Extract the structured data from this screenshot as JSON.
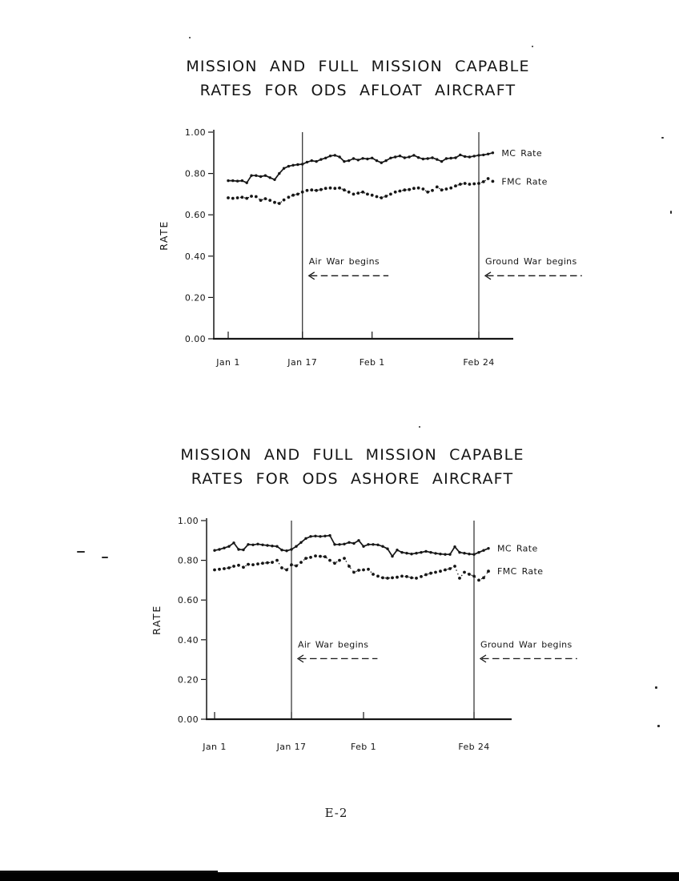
{
  "page": {
    "footer": "E-2",
    "background": "#ffffff",
    "ink_color": "#161616"
  },
  "chart_data": [
    {
      "type": "line",
      "title": "MISSION AND FULL MISSION CAPABLE RATES FOR ODS AFLOAT AIRCRAFT",
      "title_lines": [
        "MISSION AND FULL MISSION CAPABLE",
        "RATES FOR ODS AFLOAT AIRCRAFT"
      ],
      "ylabel": "RATE",
      "xlabel": "",
      "ylim": [
        0.0,
        1.0
      ],
      "grid": "off",
      "legend_position": "right-of-line-ends",
      "yticks": [
        0.0,
        0.2,
        0.4,
        0.6,
        0.8,
        1.0
      ],
      "ytick_labels": [
        "0.00",
        "0.20",
        "0.40",
        "0.60",
        "0.80",
        "1.00"
      ],
      "xtick_labels": [
        "Jan 1",
        "Jan 17",
        "Feb 1",
        "Feb 24"
      ],
      "xtick_days": [
        0,
        16,
        31,
        54
      ],
      "x_days_range": [
        0,
        57
      ],
      "annotations": [
        {
          "label": "Air War begins",
          "at_day": 16,
          "arrow": "left-dashed"
        },
        {
          "label": "Ground War begins",
          "at_day": 54,
          "arrow": "left-dashed"
        }
      ],
      "series": [
        {
          "name": "MC Rate",
          "style": "solid-with-markers",
          "values": [
            0.765,
            0.765,
            0.763,
            0.765,
            0.755,
            0.79,
            0.79,
            0.785,
            0.79,
            0.78,
            0.77,
            0.8,
            0.825,
            0.835,
            0.84,
            0.843,
            0.845,
            0.855,
            0.862,
            0.858,
            0.868,
            0.875,
            0.885,
            0.888,
            0.88,
            0.858,
            0.862,
            0.872,
            0.865,
            0.873,
            0.87,
            0.875,
            0.862,
            0.852,
            0.862,
            0.875,
            0.88,
            0.885,
            0.876,
            0.88,
            0.888,
            0.877,
            0.87,
            0.872,
            0.876,
            0.868,
            0.858,
            0.872,
            0.874,
            0.876,
            0.89,
            0.882,
            0.88,
            0.884,
            0.888,
            0.89,
            0.894,
            0.9
          ]
        },
        {
          "name": "FMC Rate",
          "style": "dotted-with-markers",
          "values": [
            0.682,
            0.68,
            0.682,
            0.685,
            0.68,
            0.69,
            0.688,
            0.67,
            0.678,
            0.67,
            0.66,
            0.655,
            0.672,
            0.685,
            0.695,
            0.7,
            0.71,
            0.718,
            0.72,
            0.718,
            0.722,
            0.728,
            0.73,
            0.728,
            0.73,
            0.72,
            0.71,
            0.7,
            0.705,
            0.71,
            0.7,
            0.695,
            0.688,
            0.682,
            0.69,
            0.7,
            0.71,
            0.715,
            0.72,
            0.722,
            0.728,
            0.73,
            0.725,
            0.71,
            0.718,
            0.735,
            0.72,
            0.725,
            0.73,
            0.74,
            0.748,
            0.752,
            0.748,
            0.75,
            0.752,
            0.76,
            0.775,
            0.762
          ]
        }
      ]
    },
    {
      "type": "line",
      "title": "MISSION AND FULL MISSION CAPABLE RATES FOR ODS ASHORE AIRCRAFT",
      "title_lines": [
        "MISSION AND FULL MISSION CAPABLE",
        "RATES FOR ODS ASHORE AIRCRAFT"
      ],
      "ylabel": "RATE",
      "xlabel": "",
      "ylim": [
        0.0,
        1.0
      ],
      "grid": "off",
      "legend_position": "right-of-line-ends",
      "yticks": [
        0.0,
        0.2,
        0.4,
        0.6,
        0.8,
        1.0
      ],
      "ytick_labels": [
        "0.00",
        "0.20",
        "0.40",
        "0.60",
        "0.80",
        "1.00"
      ],
      "xtick_labels": [
        "Jan 1",
        "Jan 17",
        "Feb 1",
        "Feb 24"
      ],
      "xtick_days": [
        0,
        16,
        31,
        54
      ],
      "x_days_range": [
        0,
        57
      ],
      "annotations": [
        {
          "label": "Air War begins",
          "at_day": 16,
          "arrow": "left-dashed"
        },
        {
          "label": "Ground War begins",
          "at_day": 54,
          "arrow": "left-dashed"
        }
      ],
      "series": [
        {
          "name": "MC Rate",
          "style": "solid-with-markers",
          "values": [
            0.85,
            0.855,
            0.862,
            0.87,
            0.888,
            0.855,
            0.853,
            0.88,
            0.878,
            0.882,
            0.878,
            0.875,
            0.872,
            0.87,
            0.852,
            0.848,
            0.855,
            0.87,
            0.89,
            0.91,
            0.92,
            0.922,
            0.92,
            0.922,
            0.925,
            0.88,
            0.88,
            0.882,
            0.89,
            0.885,
            0.9,
            0.87,
            0.88,
            0.88,
            0.878,
            0.87,
            0.858,
            0.82,
            0.852,
            0.84,
            0.836,
            0.832,
            0.836,
            0.84,
            0.845,
            0.84,
            0.835,
            0.832,
            0.83,
            0.83,
            0.868,
            0.84,
            0.836,
            0.832,
            0.83,
            0.84,
            0.85,
            0.86
          ]
        },
        {
          "name": "FMC Rate",
          "style": "dotted-with-markers",
          "values": [
            0.752,
            0.755,
            0.758,
            0.762,
            0.77,
            0.775,
            0.765,
            0.78,
            0.778,
            0.782,
            0.785,
            0.788,
            0.79,
            0.8,
            0.762,
            0.752,
            0.778,
            0.772,
            0.79,
            0.81,
            0.815,
            0.822,
            0.82,
            0.818,
            0.8,
            0.785,
            0.8,
            0.81,
            0.77,
            0.74,
            0.75,
            0.752,
            0.755,
            0.73,
            0.72,
            0.712,
            0.71,
            0.712,
            0.715,
            0.72,
            0.718,
            0.712,
            0.71,
            0.718,
            0.728,
            0.735,
            0.74,
            0.745,
            0.752,
            0.758,
            0.77,
            0.71,
            0.74,
            0.73,
            0.72,
            0.7,
            0.712,
            0.745
          ]
        }
      ]
    }
  ]
}
